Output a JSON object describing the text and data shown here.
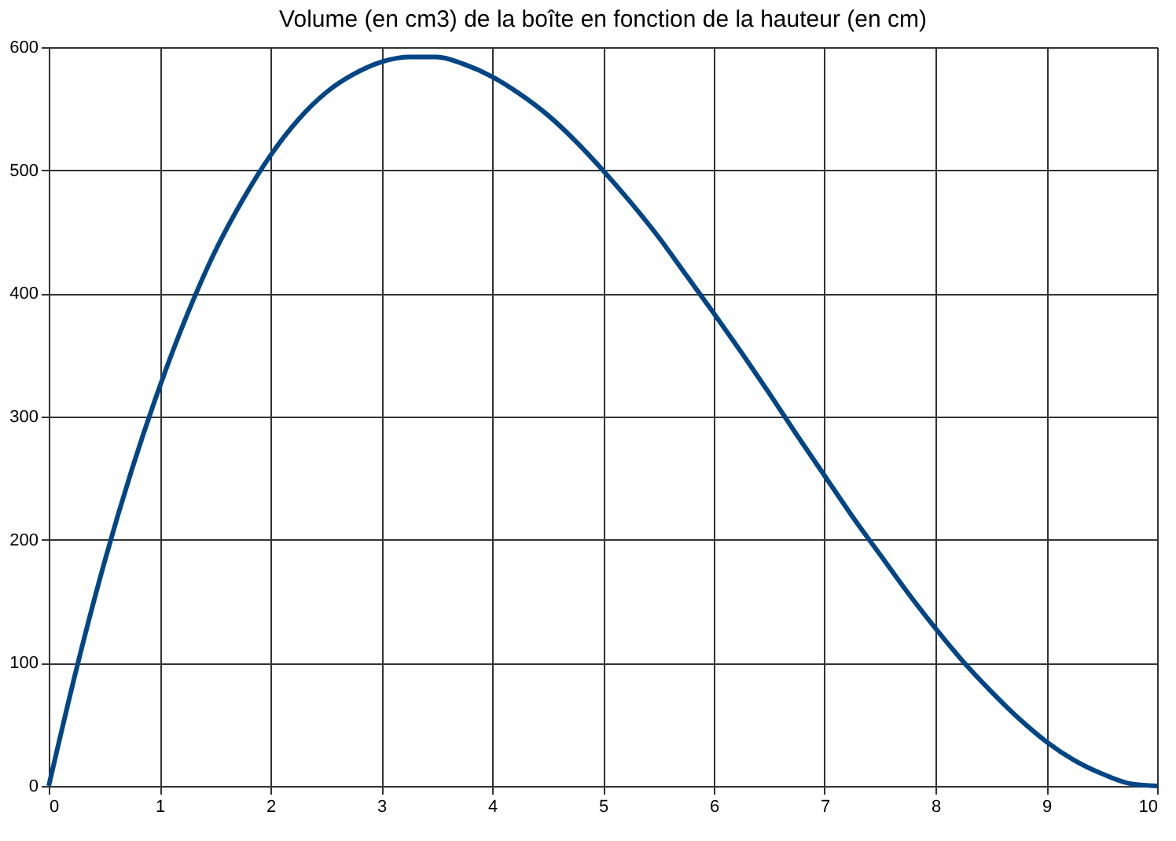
{
  "chart_data": {
    "type": "line",
    "title": "Volume (en cm3) de la boîte en fonction de la hauteur (en cm)",
    "x": [
      0,
      0.25,
      0.5,
      0.75,
      1,
      1.25,
      1.5,
      1.75,
      2,
      2.25,
      2.5,
      2.75,
      3,
      3.25,
      3.5,
      3.75,
      4,
      4.25,
      4.5,
      4.75,
      5,
      5.25,
      5.5,
      5.75,
      6,
      6.25,
      6.5,
      6.75,
      7,
      7.25,
      7.5,
      7.75,
      8,
      8.25,
      8.5,
      8.75,
      9,
      9.25,
      9.5,
      9.75,
      10
    ],
    "series": [
      {
        "color": "#004586",
        "values": [
          0,
          95,
          181,
          257,
          324,
          383,
          434,
          476,
          512,
          541,
          563,
          578,
          588,
          592,
          592,
          586,
          576,
          562,
          545,
          524,
          500,
          474,
          446,
          415,
          384,
          352,
          319,
          285,
          252,
          219,
          188,
          157,
          128,
          101,
          77,
          55,
          36,
          21,
          10,
          2,
          0
        ]
      }
    ],
    "xlim": [
      0,
      10
    ],
    "ylim": [
      0,
      600
    ],
    "xticks": [
      0,
      1,
      2,
      3,
      4,
      5,
      6,
      7,
      8,
      9,
      10
    ],
    "yticks": [
      0,
      100,
      200,
      300,
      400,
      500,
      600
    ],
    "grid": true,
    "marker": "none",
    "line_style": "solid"
  }
}
